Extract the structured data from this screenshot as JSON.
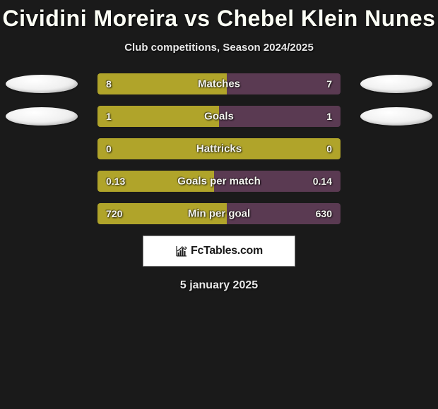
{
  "title": "Cividini Moreira vs Chebel Klein Nunes",
  "subtitle": "Club competitions, Season 2024/2025",
  "date": "5 january 2025",
  "logo_text": "FcTables.com",
  "colors": {
    "background": "#1a1a1a",
    "bar_left": "#b0a42a",
    "bar_right": "#5a3a52",
    "bar_full_left": "#b0a42a",
    "text": "#f5f5f0"
  },
  "stats": [
    {
      "label": "Matches",
      "left_value": "8",
      "right_value": "7",
      "left_pct": 53.3,
      "right_pct": 46.7,
      "left_color": "#b0a42a",
      "right_color": "#5a3a52",
      "show_left_avatar": true,
      "show_right_avatar": true
    },
    {
      "label": "Goals",
      "left_value": "1",
      "right_value": "1",
      "left_pct": 50,
      "right_pct": 50,
      "left_color": "#b0a42a",
      "right_color": "#5a3a52",
      "show_left_avatar": true,
      "show_right_avatar": true
    },
    {
      "label": "Hattricks",
      "left_value": "0",
      "right_value": "0",
      "left_pct": 100,
      "right_pct": 0,
      "left_color": "#b0a42a",
      "right_color": "#5a3a52",
      "show_left_avatar": false,
      "show_right_avatar": false
    },
    {
      "label": "Goals per match",
      "left_value": "0.13",
      "right_value": "0.14",
      "left_pct": 48.1,
      "right_pct": 51.9,
      "left_color": "#b0a42a",
      "right_color": "#5a3a52",
      "show_left_avatar": false,
      "show_right_avatar": false
    },
    {
      "label": "Min per goal",
      "left_value": "720",
      "right_value": "630",
      "left_pct": 53.3,
      "right_pct": 46.7,
      "left_color": "#b0a42a",
      "right_color": "#5a3a52",
      "show_left_avatar": false,
      "show_right_avatar": false
    }
  ]
}
